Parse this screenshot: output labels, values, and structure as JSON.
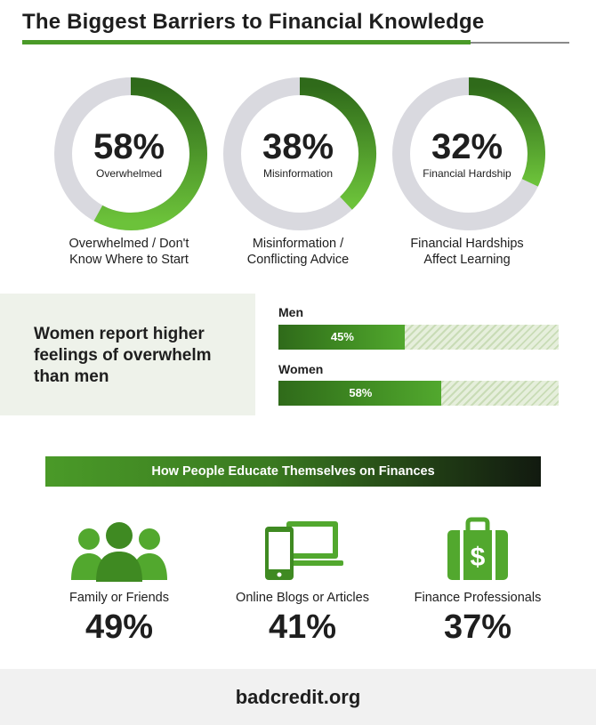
{
  "title": "The Biggest Barriers to Financial Knowledge",
  "colors": {
    "accent": "#4a9a28",
    "dark_green": "#2f6a1a",
    "ring_gray": "#d9d9df",
    "panel_bg": "#eef2ea"
  },
  "donuts": [
    {
      "percent_label": "58%",
      "sublabel": "Overwhelmed",
      "caption_line1": "Overwhelmed / Don't",
      "caption_line2": "Know Where to Start"
    },
    {
      "percent_label": "38%",
      "sublabel": "Misinformation",
      "caption_line1": "Misinformation /",
      "caption_line2": "Conflicting Advice"
    },
    {
      "percent_label": "32%",
      "sublabel": "Financial Hardship",
      "caption_line1": "Financial Hardships",
      "caption_line2": "Affect Learning"
    }
  ],
  "gender": {
    "headline": "Women report higher feelings of overwhelm than men",
    "bars": [
      {
        "label": "Men",
        "value_label": "45%"
      },
      {
        "label": "Women",
        "value_label": "58%"
      }
    ]
  },
  "education": {
    "banner": "How People Educate Themselves on Finances",
    "items": [
      {
        "icon": "people-group-icon",
        "label": "Family or Friends",
        "percent_label": "49%"
      },
      {
        "icon": "devices-icon",
        "label": "Online Blogs or Articles",
        "percent_label": "41%"
      },
      {
        "icon": "money-briefcase-icon",
        "label": "Finance Professionals",
        "percent_label": "37%"
      }
    ]
  },
  "footer": {
    "brand": "badcredit.org"
  },
  "chart_data": [
    {
      "type": "pie",
      "title": "The Biggest Barriers to Financial Knowledge",
      "categories": [
        "Overwhelmed / Don't Know Where to Start",
        "Misinformation / Conflicting Advice",
        "Financial Hardships Affect Learning"
      ],
      "values": [
        58,
        38,
        32
      ],
      "unit": "%"
    },
    {
      "type": "bar",
      "title": "Women report higher feelings of overwhelm than men",
      "categories": [
        "Men",
        "Women"
      ],
      "values": [
        45,
        58
      ],
      "ylim": [
        0,
        100
      ],
      "unit": "%"
    },
    {
      "type": "table",
      "title": "How People Educate Themselves on Finances",
      "categories": [
        "Family or Friends",
        "Online Blogs or Articles",
        "Finance Professionals"
      ],
      "values": [
        49,
        41,
        37
      ],
      "unit": "%"
    }
  ]
}
